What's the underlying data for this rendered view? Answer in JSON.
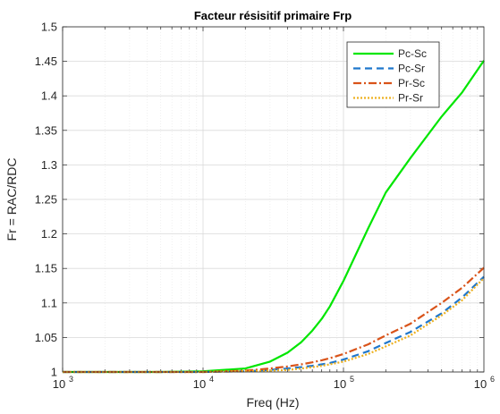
{
  "chart_data": {
    "type": "line",
    "title": "Facteur résisitif primaire Frp",
    "xlabel": "Freq (Hz)",
    "ylabel": "Fr = RAC/RDC",
    "xscale": "log",
    "xlim": [
      1000,
      1000000
    ],
    "ylim": [
      1,
      1.5
    ],
    "grid": "on",
    "legend_location": "top-right",
    "x_tick_labels": [
      {
        "base": "10",
        "exp": "3"
      },
      {
        "base": "10",
        "exp": "4"
      },
      {
        "base": "10",
        "exp": "5"
      },
      {
        "base": "10",
        "exp": "6"
      }
    ],
    "y_tick_labels": [
      "1",
      "1.05",
      "1.1",
      "1.15",
      "1.2",
      "1.25",
      "1.3",
      "1.35",
      "1.4",
      "1.45",
      "1.5"
    ],
    "x": [
      1000,
      5000,
      10000,
      20000,
      30000,
      40000,
      50000,
      60000,
      70000,
      80000,
      100000,
      150000,
      200000,
      300000,
      500000,
      700000,
      1000000
    ],
    "series": [
      {
        "name": "Pc-Sc",
        "color": "#00e600",
        "dash": "solid",
        "values": [
          1.0,
          1.0,
          1.001,
          1.005,
          1.015,
          1.028,
          1.043,
          1.06,
          1.077,
          1.095,
          1.132,
          1.208,
          1.26,
          1.31,
          1.37,
          1.405,
          1.451
        ]
      },
      {
        "name": "Pc-Sr",
        "color": "#1f77cc",
        "dash": "dashed",
        "values": [
          1.0,
          1.0,
          1.0,
          1.001,
          1.003,
          1.005,
          1.007,
          1.009,
          1.011,
          1.013,
          1.018,
          1.03,
          1.042,
          1.058,
          1.085,
          1.108,
          1.138
        ]
      },
      {
        "name": "Pr-Sc",
        "color": "#d95319",
        "dash": "dashdot",
        "values": [
          1.0,
          1.0,
          1.0,
          1.002,
          1.005,
          1.008,
          1.011,
          1.014,
          1.017,
          1.02,
          1.026,
          1.04,
          1.053,
          1.07,
          1.1,
          1.122,
          1.151
        ]
      },
      {
        "name": "Pr-Sr",
        "color": "#edb120",
        "dash": "dotted",
        "values": [
          1.0,
          1.0,
          1.0,
          1.001,
          1.002,
          1.003,
          1.005,
          1.007,
          1.009,
          1.011,
          1.015,
          1.026,
          1.037,
          1.053,
          1.082,
          1.104,
          1.136
        ]
      }
    ]
  }
}
